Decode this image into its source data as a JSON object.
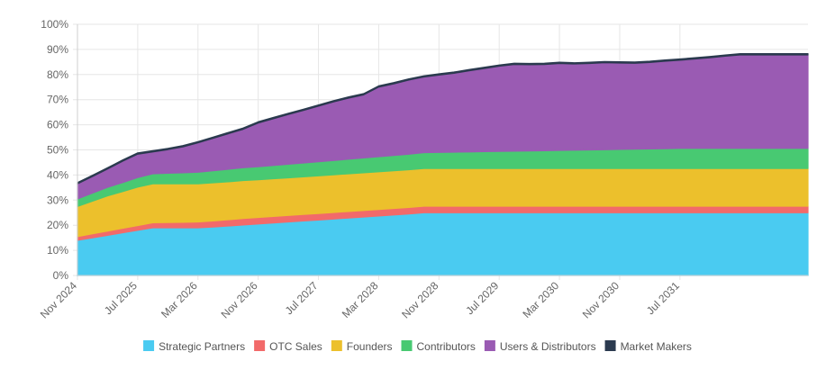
{
  "chart_data": {
    "type": "area",
    "stacked": true,
    "title": "",
    "xlabel": "",
    "ylabel": "",
    "ylim": [
      0,
      100
    ],
    "y_ticks": [
      "0%",
      "10%",
      "20%",
      "30%",
      "40%",
      "50%",
      "60%",
      "70%",
      "80%",
      "90%",
      "100%"
    ],
    "x_ticks": [
      "Nov 2024",
      "Jul 2025",
      "Mar 2026",
      "Nov 2026",
      "Jul 2027",
      "Mar 2028",
      "Nov 2028",
      "Jul 2029",
      "Mar 2030",
      "Nov 2030",
      "Jul 2031"
    ],
    "x_range_months": [
      0,
      97
    ],
    "x": [
      0,
      2,
      4,
      6,
      8,
      10,
      12,
      14,
      16,
      18,
      20,
      22,
      24,
      26,
      28,
      30,
      32,
      34,
      36,
      38,
      40,
      42,
      44,
      46,
      48,
      50,
      52,
      54,
      56,
      58,
      60,
      62,
      64,
      66,
      68,
      70,
      72,
      74,
      76,
      78,
      80,
      82,
      84,
      86,
      88,
      90,
      92,
      94,
      97
    ],
    "series": [
      {
        "name": "Strategic Partners",
        "color": "#4ACBF1",
        "values": [
          14,
          15,
          16,
          17,
          18,
          19,
          19,
          19,
          19,
          19.3,
          19.7,
          20.1,
          20.5,
          20.9,
          21.3,
          21.7,
          22.1,
          22.5,
          22.9,
          23.3,
          23.7,
          24.1,
          24.5,
          25,
          25,
          25,
          25,
          25,
          25,
          25,
          25,
          25,
          25,
          25,
          25,
          25,
          25,
          25,
          25,
          25,
          25,
          25,
          25,
          25,
          25,
          25,
          25,
          25,
          25
        ]
      },
      {
        "name": "OTC Sales",
        "color": "#F26A6A",
        "values": [
          1.5,
          1.6,
          1.7,
          1.8,
          1.9,
          2,
          2.1,
          2.2,
          2.3,
          2.4,
          2.5,
          2.6,
          2.6,
          2.6,
          2.6,
          2.6,
          2.6,
          2.6,
          2.6,
          2.6,
          2.6,
          2.6,
          2.6,
          2.6,
          2.6,
          2.6,
          2.6,
          2.6,
          2.6,
          2.6,
          2.6,
          2.6,
          2.6,
          2.6,
          2.6,
          2.6,
          2.6,
          2.6,
          2.6,
          2.6,
          2.6,
          2.6,
          2.6,
          2.6,
          2.6,
          2.6,
          2.6,
          2.6,
          2.6
        ]
      },
      {
        "name": "Founders",
        "color": "#ECC02C",
        "values": [
          12,
          13,
          14,
          14.6,
          15.3,
          15.5,
          15.4,
          15.3,
          15.2,
          15.2,
          15.1,
          15.1,
          15,
          15,
          15,
          15,
          15,
          15,
          15,
          15,
          15,
          15,
          15,
          15,
          15,
          15,
          15,
          15,
          15,
          15,
          15,
          15,
          15,
          15,
          15,
          15,
          15,
          15,
          15,
          15,
          15,
          15,
          15,
          15,
          15,
          15,
          15,
          15,
          15
        ]
      },
      {
        "name": "Contributors",
        "color": "#48C972",
        "values": [
          3,
          3.2,
          3.4,
          3.6,
          3.8,
          4,
          4.2,
          4.4,
          4.6,
          4.8,
          5,
          5.1,
          5.2,
          5.3,
          5.4,
          5.5,
          5.6,
          5.7,
          5.8,
          5.9,
          6,
          6.1,
          6.2,
          6.3,
          6.4,
          6.5,
          6.6,
          6.7,
          6.8,
          6.9,
          7,
          7.1,
          7.2,
          7.3,
          7.4,
          7.5,
          7.6,
          7.7,
          7.8,
          7.9,
          8,
          8,
          8,
          8,
          8,
          8,
          8,
          8,
          8
        ]
      },
      {
        "name": "Users & Distributors",
        "color": "#9A5BB3",
        "values": [
          6,
          6.6,
          7.3,
          8.5,
          9.3,
          8.7,
          9.4,
          10.3,
          11.7,
          12.9,
          14.1,
          15.3,
          17.4,
          18.6,
          19.8,
          20.9,
          22.1,
          23.3,
          24.3,
          25.1,
          27.7,
          28.5,
          29.5,
          30.1,
          30.8,
          31.4,
          32.3,
          33.1,
          33.9,
          34.5,
          34.3,
          34.3,
          34.6,
          34.3,
          34.4,
          34.6,
          34.4,
          34.2,
          34.4,
          34.8,
          35.1,
          35.6,
          36.1,
          36.7,
          37.2,
          37.2,
          37.2,
          37.2,
          37.2
        ]
      },
      {
        "name": "Market Makers",
        "color": "#2B3A4F",
        "values": [
          0.5,
          0.5,
          0.5,
          0.5,
          0.5,
          0.5,
          0.5,
          0.5,
          0.5,
          0.5,
          0.5,
          0.5,
          0.5,
          0.5,
          0.5,
          0.5,
          0.5,
          0.5,
          0.5,
          0.5,
          0.5,
          0.5,
          0.5,
          0.5,
          0.5,
          0.5,
          0.5,
          0.5,
          0.5,
          0.5,
          0.5,
          0.5,
          0.5,
          0.5,
          0.5,
          0.5,
          0.5,
          0.5,
          0.5,
          0.5,
          0.5,
          0.5,
          0.5,
          0.5,
          0.5,
          0.5,
          0.5,
          0.5,
          0.5
        ]
      }
    ],
    "legend_position": "bottom-center",
    "grid": true
  }
}
